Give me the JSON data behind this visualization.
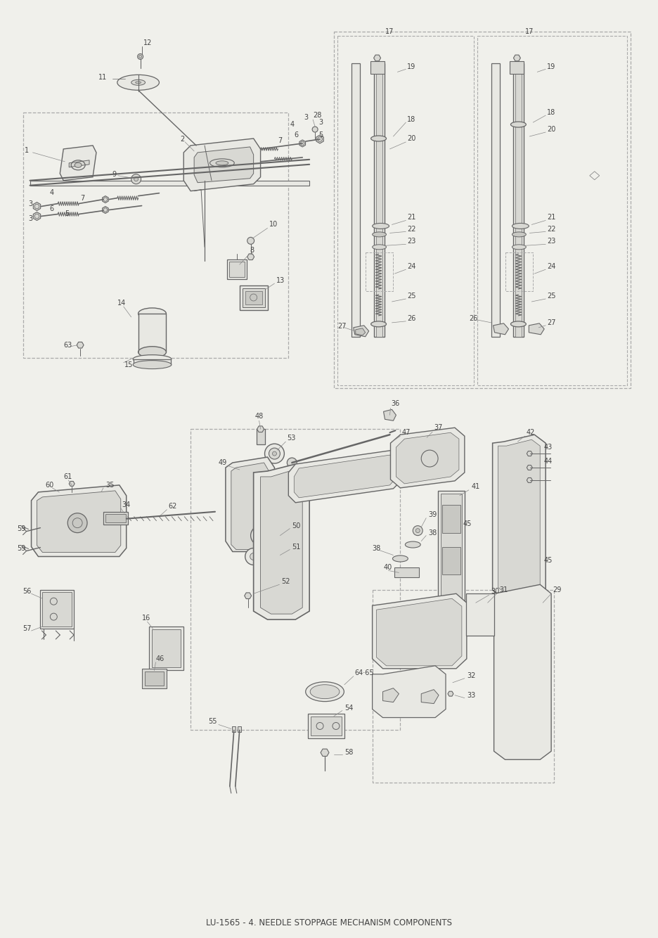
{
  "title": "LU-1565 - 4. NEEDLE STOPPAGE MECHANISM COMPONENTS",
  "bg_color": "#f0f0eb",
  "line_color": "#999999",
  "dark_line": "#666666",
  "medium_line": "#888888",
  "text_color": "#444444",
  "fig_width": 9.37,
  "fig_height": 13.34,
  "dpi": 100,
  "dash_color": "#aaaaaa",
  "part_fill": "#e8e8e3",
  "part_fill2": "#d8d8d3",
  "part_fill3": "#c8c8c3"
}
